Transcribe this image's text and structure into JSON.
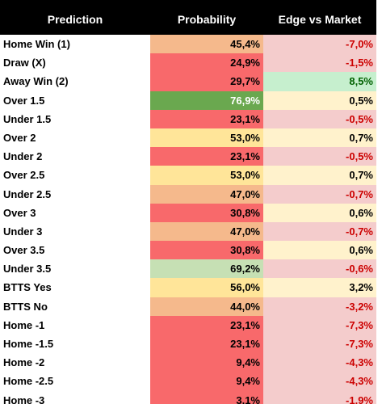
{
  "table": {
    "header": [
      "Prediction",
      "Probability",
      "Edge vs Market"
    ],
    "rows": [
      [
        "Home Win (1)",
        "45,4%",
        "-7,0%"
      ],
      [
        "Draw (X)",
        "24,9%",
        "-1,5%"
      ],
      [
        "Away Win (2)",
        "29,7%",
        "8,5%"
      ],
      [
        "Over 1.5",
        "76,9%",
        "0,5%"
      ],
      [
        "Under 1.5",
        "23,1%",
        "-0,5%"
      ],
      [
        "Over 2",
        "53,0%",
        "0,7%"
      ],
      [
        "Under 2",
        "23,1%",
        "-0,5%"
      ],
      [
        "Over 2.5",
        "53,0%",
        "0,7%"
      ],
      [
        "Under 2.5",
        "47,0%",
        "-0,7%"
      ],
      [
        "Over 3",
        "30,8%",
        "0,6%"
      ],
      [
        "Under 3",
        "47,0%",
        "-0,7%"
      ],
      [
        "Over 3.5",
        "30,8%",
        "0,6%"
      ],
      [
        "Under 3.5",
        "69,2%",
        "-0,6%"
      ],
      [
        "BTTS Yes",
        "56,0%",
        "3,2%"
      ],
      [
        "BTTS No",
        "44,0%",
        "-3,2%"
      ],
      [
        "Home -1",
        "23,1%",
        "-7,3%"
      ],
      [
        "Home -1.5",
        "23,1%",
        "-7,3%"
      ],
      [
        "Home -2",
        "9,4%",
        "-4,3%"
      ],
      [
        "Home -2.5",
        "9,4%",
        "-4,3%"
      ],
      [
        "Home -3",
        "3,1%",
        "-1,9%"
      ]
    ],
    "fills": [
      [
        "#f5b98c",
        "#f4cccc"
      ],
      [
        "#f8696b",
        "#f4cccc"
      ],
      [
        "#f8696b",
        "#c6efce"
      ],
      [
        "#6aa84f",
        "#fff2cc"
      ],
      [
        "#f8696b",
        "#f4cccc"
      ],
      [
        "#ffe599",
        "#fff2cc"
      ],
      [
        "#f8696b",
        "#f4cccc"
      ],
      [
        "#ffe599",
        "#fff2cc"
      ],
      [
        "#f5b98c",
        "#f4cccc"
      ],
      [
        "#f8696b",
        "#fff2cc"
      ],
      [
        "#f5b98c",
        "#f4cccc"
      ],
      [
        "#f8696b",
        "#fff2cc"
      ],
      [
        "#c6e0b4",
        "#f4cccc"
      ],
      [
        "#ffe599",
        "#fff2cc"
      ],
      [
        "#f5b98c",
        "#f4cccc"
      ],
      [
        "#f8696b",
        "#f4cccc"
      ],
      [
        "#f8696b",
        "#f4cccc"
      ],
      [
        "#f8696b",
        "#f4cccc"
      ],
      [
        "#f8696b",
        "#f4cccc"
      ],
      [
        "#f8696b",
        "#f4cccc"
      ]
    ],
    "text_colors": [
      [
        "#000000",
        "#cc0000"
      ],
      [
        "#000000",
        "#cc0000"
      ],
      [
        "#000000",
        "#006100"
      ],
      [
        "#ffffff",
        "#000000"
      ],
      [
        "#000000",
        "#cc0000"
      ],
      [
        "#000000",
        "#000000"
      ],
      [
        "#000000",
        "#cc0000"
      ],
      [
        "#000000",
        "#000000"
      ],
      [
        "#000000",
        "#cc0000"
      ],
      [
        "#000000",
        "#000000"
      ],
      [
        "#000000",
        "#cc0000"
      ],
      [
        "#000000",
        "#000000"
      ],
      [
        "#000000",
        "#cc0000"
      ],
      [
        "#000000",
        "#000000"
      ],
      [
        "#000000",
        "#cc0000"
      ],
      [
        "#000000",
        "#cc0000"
      ],
      [
        "#000000",
        "#cc0000"
      ],
      [
        "#000000",
        "#cc0000"
      ],
      [
        "#000000",
        "#cc0000"
      ],
      [
        "#000000",
        "#cc0000"
      ]
    ]
  }
}
